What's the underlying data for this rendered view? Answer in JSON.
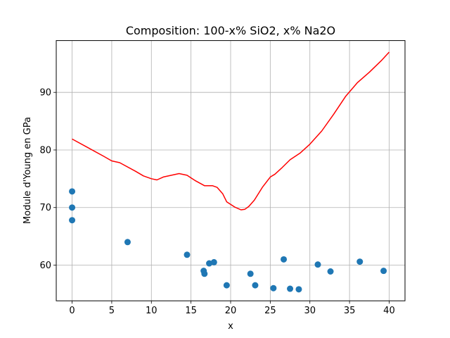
{
  "chart_data": {
    "type": "scatter",
    "title": "Composition: 100-x% SiO2, x% Na2O",
    "xlabel": "x",
    "ylabel": "Module d'Young en GPa",
    "xlim": [
      -2,
      42
    ],
    "ylim": [
      53.8,
      99
    ],
    "xticks": [
      0,
      5,
      10,
      15,
      20,
      25,
      30,
      35,
      40
    ],
    "yticks": [
      60,
      70,
      80,
      90
    ],
    "grid": true,
    "colors": {
      "points": "#1f77b4",
      "line": "#ff0000"
    },
    "series": [
      {
        "kind": "scatter",
        "x": [
          0,
          0,
          0,
          7,
          14.5,
          16.6,
          16.7,
          17.3,
          17.9,
          19.5,
          22.5,
          23.1,
          25.4,
          26.7,
          27.5,
          28.6,
          31.0,
          32.6,
          36.3,
          39.3
        ],
        "y": [
          72.8,
          70.0,
          67.8,
          64.0,
          61.8,
          59.0,
          58.5,
          60.3,
          60.5,
          56.5,
          58.5,
          56.5,
          56.0,
          61.0,
          55.9,
          55.8,
          60.1,
          58.9,
          60.6,
          59.0
        ]
      },
      {
        "kind": "line",
        "x": [
          0,
          2,
          4,
          5,
          6,
          8,
          9,
          10,
          10.7,
          11.5,
          13.5,
          14.5,
          15.5,
          16.7,
          17.7,
          18.3,
          19,
          19.5,
          20.5,
          21.3,
          21.8,
          22.3,
          23,
          24,
          25,
          25.6,
          26.4,
          27.5,
          28.8,
          30,
          31.5,
          33,
          34.5,
          36,
          37.5,
          39,
          40
        ],
        "y": [
          81.9,
          80.4,
          78.9,
          78.1,
          77.8,
          76.3,
          75.5,
          75.0,
          74.8,
          75.3,
          75.9,
          75.6,
          74.7,
          73.8,
          73.8,
          73.5,
          72.4,
          71.0,
          70.1,
          69.6,
          69.7,
          70.2,
          71.3,
          73.5,
          75.3,
          75.8,
          76.8,
          78.3,
          79.5,
          81.0,
          83.3,
          86.2,
          89.3,
          91.7,
          93.5,
          95.5,
          97.0
        ]
      }
    ]
  }
}
